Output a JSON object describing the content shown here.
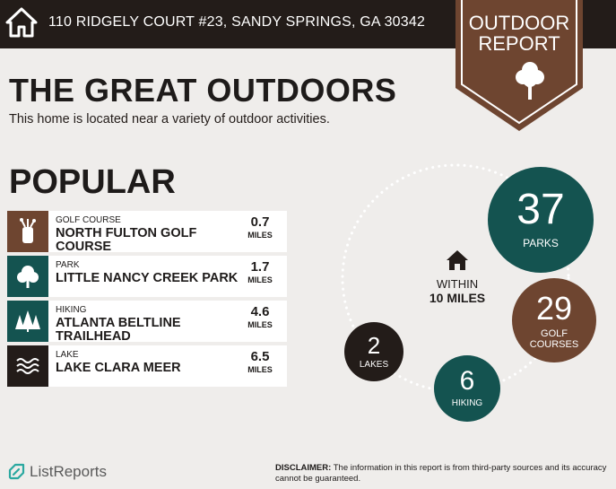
{
  "header": {
    "address": "110 RIDGELY COURT #23, SANDY SPRINGS, GA 30342",
    "icon": "home-icon"
  },
  "banner": {
    "line1": "OUTDOOR",
    "line2": "REPORT",
    "color": "#6e4530",
    "icon": "tree-icon"
  },
  "main": {
    "title": "THE GREAT OUTDOORS",
    "subtitle": "This home is located near a variety of outdoor activities."
  },
  "popular": {
    "title": "POPULAR",
    "items": [
      {
        "category": "GOLF COURSE",
        "name": "NORTH FULTON GOLF COURSE",
        "distance": "0.7",
        "unit": "MILES",
        "icon": "golf-bag-icon",
        "color": "#6e4530"
      },
      {
        "category": "PARK",
        "name": "LITTLE NANCY CREEK PARK",
        "distance": "1.7",
        "unit": "MILES",
        "icon": "tree-icon",
        "color": "#145350"
      },
      {
        "category": "HIKING",
        "name": "ATLANTA BELTLINE TRAILHEAD",
        "distance": "4.6",
        "unit": "MILES",
        "icon": "pine-trees-icon",
        "color": "#145350"
      },
      {
        "category": "LAKE",
        "name": "LAKE CLARA MEER",
        "distance": "6.5",
        "unit": "MILES",
        "icon": "water-waves-icon",
        "color": "#231c19"
      }
    ]
  },
  "summary": {
    "within_line1": "WITHIN",
    "within_line2": "10 MILES",
    "icon": "home-icon",
    "parks": {
      "count": "37",
      "label": "PARKS",
      "color": "#145350"
    },
    "golf": {
      "count": "29",
      "label1": "GOLF",
      "label2": "COURSES",
      "color": "#6e4530"
    },
    "hiking": {
      "count": "6",
      "label": "HIKING",
      "color": "#145350"
    },
    "lakes": {
      "count": "2",
      "label": "LAKES",
      "color": "#231c19"
    }
  },
  "footer": {
    "brand": "ListReports",
    "disclaimer_label": "DISCLAIMER:",
    "disclaimer_text": " The information in this report is from third-party sources and its accuracy cannot be guaranteed."
  }
}
